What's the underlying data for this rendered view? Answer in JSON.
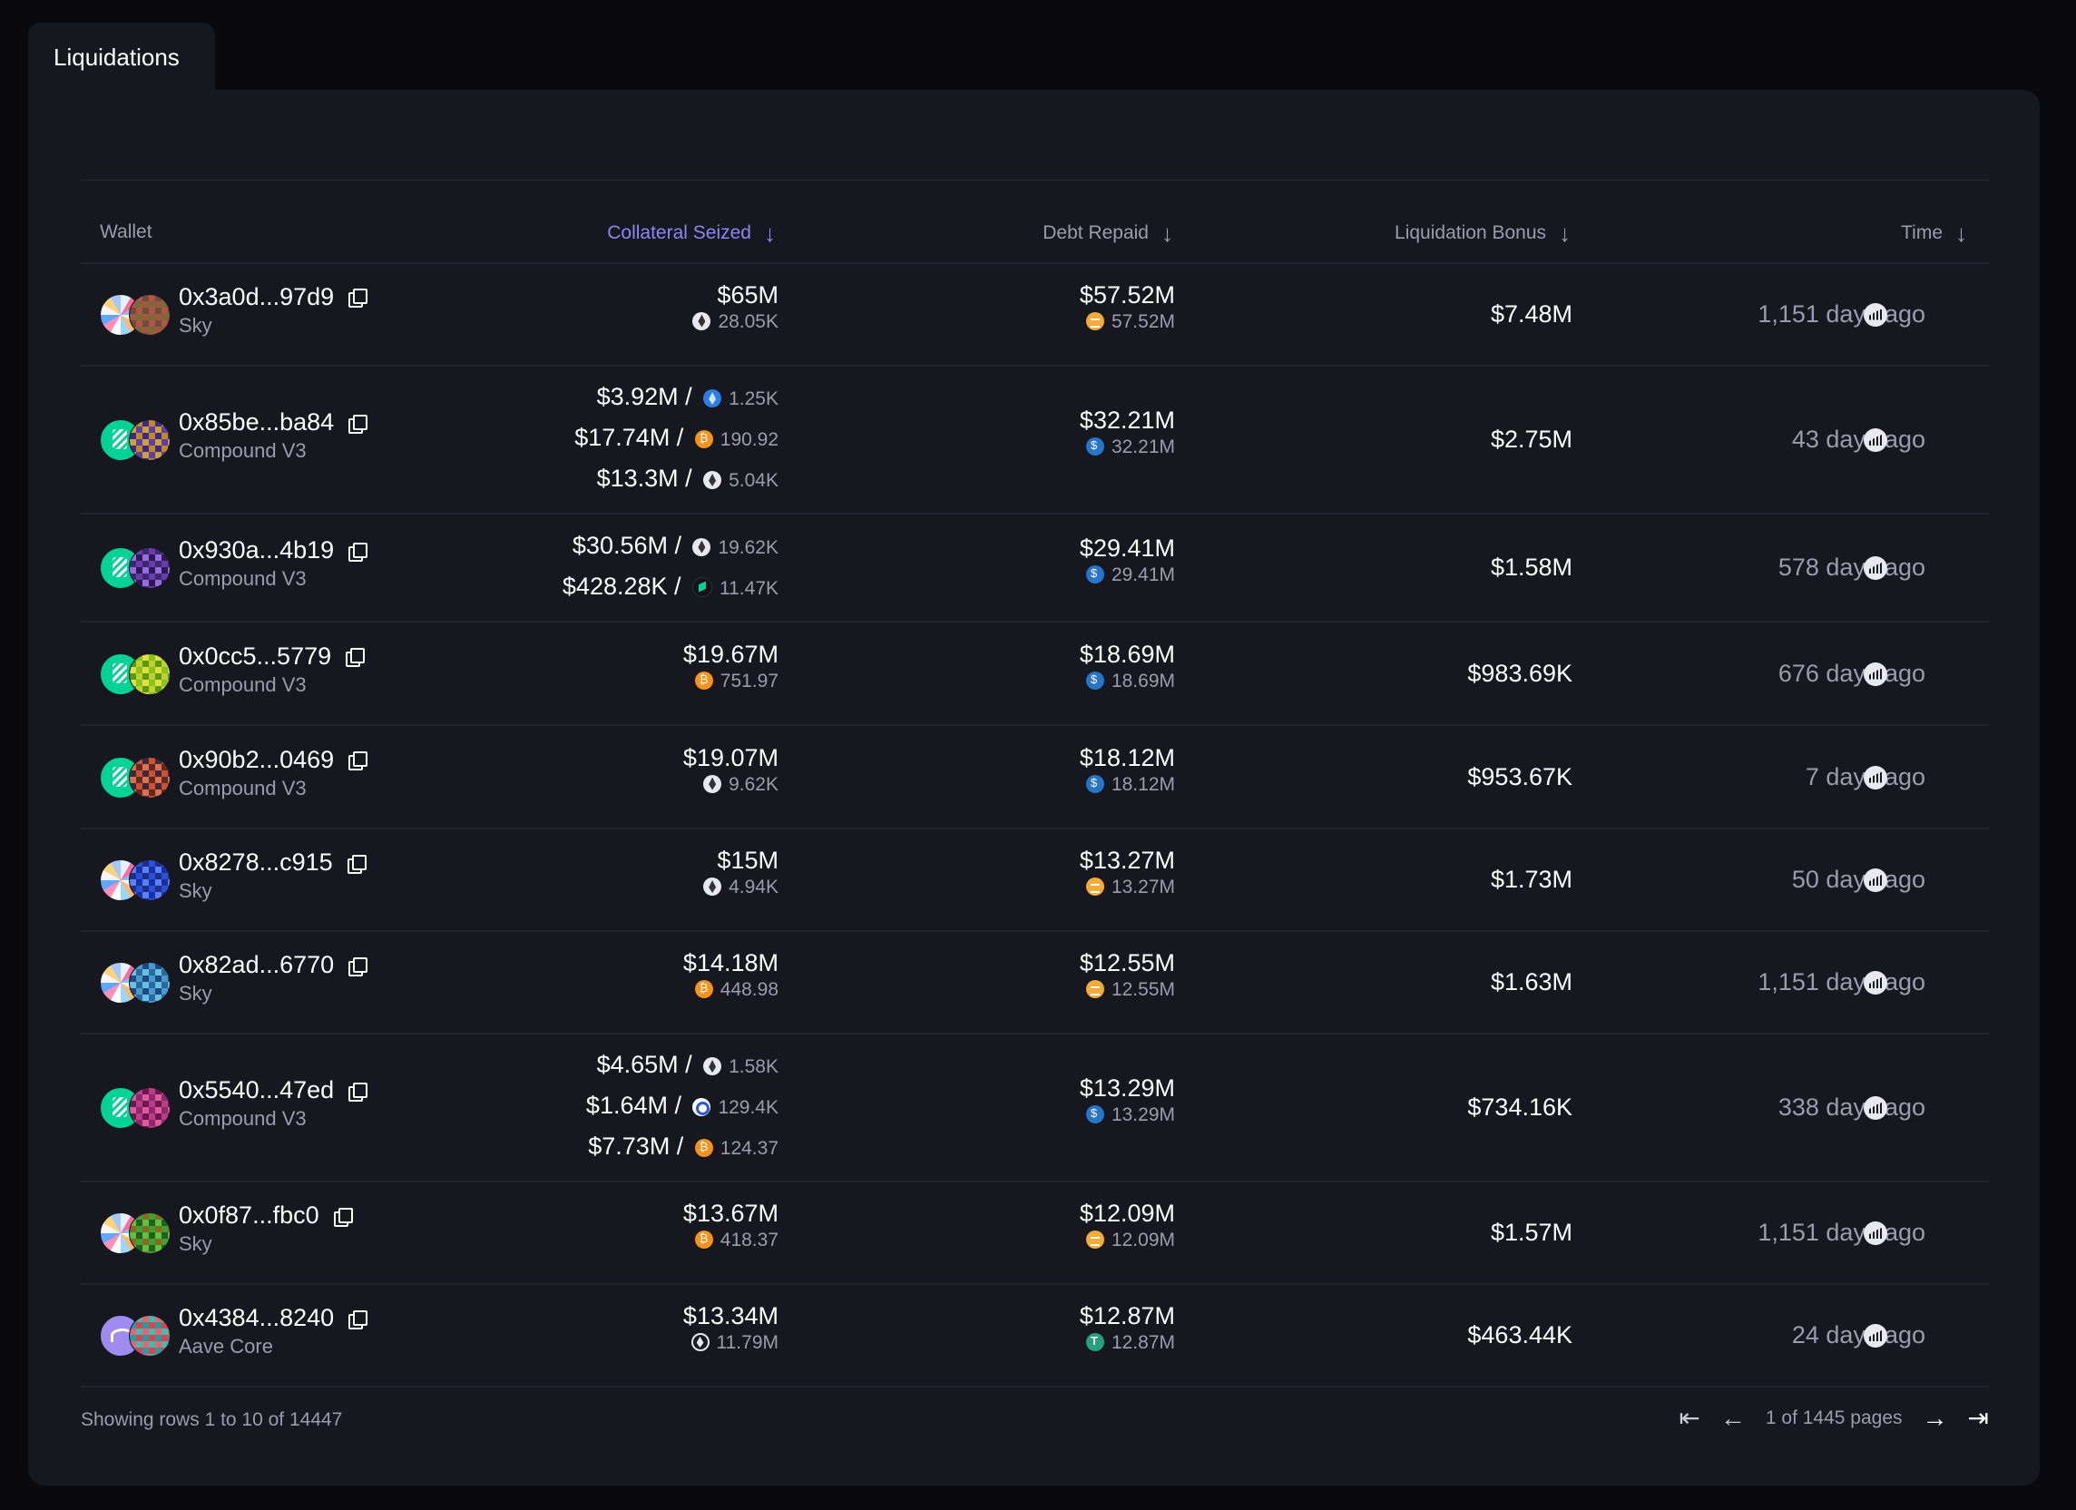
{
  "tab": {
    "label": "Liquidations"
  },
  "table": {
    "headers": {
      "wallet": "Wallet",
      "collateral": "Collateral Seized",
      "debt": "Debt Repaid",
      "bonus": "Liquidation Bonus",
      "time": "Time"
    },
    "sort_arrow": "↓",
    "rows": [
      {
        "wallet": "0x3a0d...97d9",
        "protocol": "Sky",
        "protocol_icon": "sky-icon",
        "collateral": [
          {
            "usd": "$65M",
            "token": "eth-icon",
            "amount": "28.05K"
          }
        ],
        "debt": {
          "usd": "$57.52M",
          "token": "dai-icon",
          "amount": "57.52M"
        },
        "bonus": "$7.48M",
        "time": "1,151 days ago"
      },
      {
        "wallet": "0x85be...ba84",
        "protocol": "Compound V3",
        "protocol_icon": "compound-icon",
        "collateral": [
          {
            "usd": "$3.92M /",
            "token": "steth-icon",
            "amount": "1.25K"
          },
          {
            "usd": "$17.74M /",
            "token": "btc-icon",
            "amount": "190.92"
          },
          {
            "usd": "$13.3M /",
            "token": "eth-icon",
            "amount": "5.04K"
          }
        ],
        "debt": {
          "usd": "$32.21M",
          "token": "usdc-icon",
          "amount": "32.21M"
        },
        "bonus": "$2.75M",
        "time": "43 days ago"
      },
      {
        "wallet": "0x930a...4b19",
        "protocol": "Compound V3",
        "protocol_icon": "compound-icon",
        "collateral": [
          {
            "usd": "$30.56M /",
            "token": "eth-icon",
            "amount": "19.62K"
          },
          {
            "usd": "$428.28K /",
            "token": "comp-icon",
            "amount": "11.47K"
          }
        ],
        "debt": {
          "usd": "$29.41M",
          "token": "usdc-icon",
          "amount": "29.41M"
        },
        "bonus": "$1.58M",
        "time": "578 days ago"
      },
      {
        "wallet": "0x0cc5...5779",
        "protocol": "Compound V3",
        "protocol_icon": "compound-icon",
        "collateral": [
          {
            "usd": "$19.67M",
            "token": "btc-icon",
            "amount": "751.97"
          }
        ],
        "debt": {
          "usd": "$18.69M",
          "token": "usdc-icon",
          "amount": "18.69M"
        },
        "bonus": "$983.69K",
        "time": "676 days ago"
      },
      {
        "wallet": "0x90b2...0469",
        "protocol": "Compound V3",
        "protocol_icon": "compound-icon",
        "collateral": [
          {
            "usd": "$19.07M",
            "token": "eth-icon",
            "amount": "9.62K"
          }
        ],
        "debt": {
          "usd": "$18.12M",
          "token": "usdc-icon",
          "amount": "18.12M"
        },
        "bonus": "$953.67K",
        "time": "7 days ago"
      },
      {
        "wallet": "0x8278...c915",
        "protocol": "Sky",
        "protocol_icon": "sky-icon",
        "collateral": [
          {
            "usd": "$15M",
            "token": "eth-icon",
            "amount": "4.94K"
          }
        ],
        "debt": {
          "usd": "$13.27M",
          "token": "dai-icon",
          "amount": "13.27M"
        },
        "bonus": "$1.73M",
        "time": "50 days ago"
      },
      {
        "wallet": "0x82ad...6770",
        "protocol": "Sky",
        "protocol_icon": "sky-icon",
        "collateral": [
          {
            "usd": "$14.18M",
            "token": "btc-icon",
            "amount": "448.98"
          }
        ],
        "debt": {
          "usd": "$12.55M",
          "token": "dai-icon",
          "amount": "12.55M"
        },
        "bonus": "$1.63M",
        "time": "1,151 days ago"
      },
      {
        "wallet": "0x5540...47ed",
        "protocol": "Compound V3",
        "protocol_icon": "compound-icon",
        "collateral": [
          {
            "usd": "$4.65M /",
            "token": "eth-icon",
            "amount": "1.58K"
          },
          {
            "usd": "$1.64M /",
            "token": "link-icon",
            "amount": "129.4K"
          },
          {
            "usd": "$7.73M /",
            "token": "btc-icon",
            "amount": "124.37"
          }
        ],
        "debt": {
          "usd": "$13.29M",
          "token": "usdc-icon",
          "amount": "13.29M"
        },
        "bonus": "$734.16K",
        "time": "338 days ago"
      },
      {
        "wallet": "0x0f87...fbc0",
        "protocol": "Sky",
        "protocol_icon": "sky-icon",
        "collateral": [
          {
            "usd": "$13.67M",
            "token": "btc-icon",
            "amount": "418.37"
          }
        ],
        "debt": {
          "usd": "$12.09M",
          "token": "dai-icon",
          "amount": "12.09M"
        },
        "bonus": "$1.57M",
        "time": "1,151 days ago"
      },
      {
        "wallet": "0x4384...8240",
        "protocol": "Aave Core",
        "protocol_icon": "aave-icon",
        "collateral": [
          {
            "usd": "$13.34M",
            "token": "weth-icon",
            "amount": "11.79M"
          }
        ],
        "debt": {
          "usd": "$12.87M",
          "token": "usdt-icon",
          "amount": "12.87M"
        },
        "bonus": "$463.44K",
        "time": "24 days ago"
      }
    ]
  },
  "footer": {
    "showing": "Showing rows 1 to 10 of 14447",
    "page_info": "1 of 1445 pages"
  },
  "colors": {
    "accent": "#8b86f4",
    "background": "#0a0a0e",
    "card": "#16171f",
    "muted": "#9a9cb0"
  }
}
